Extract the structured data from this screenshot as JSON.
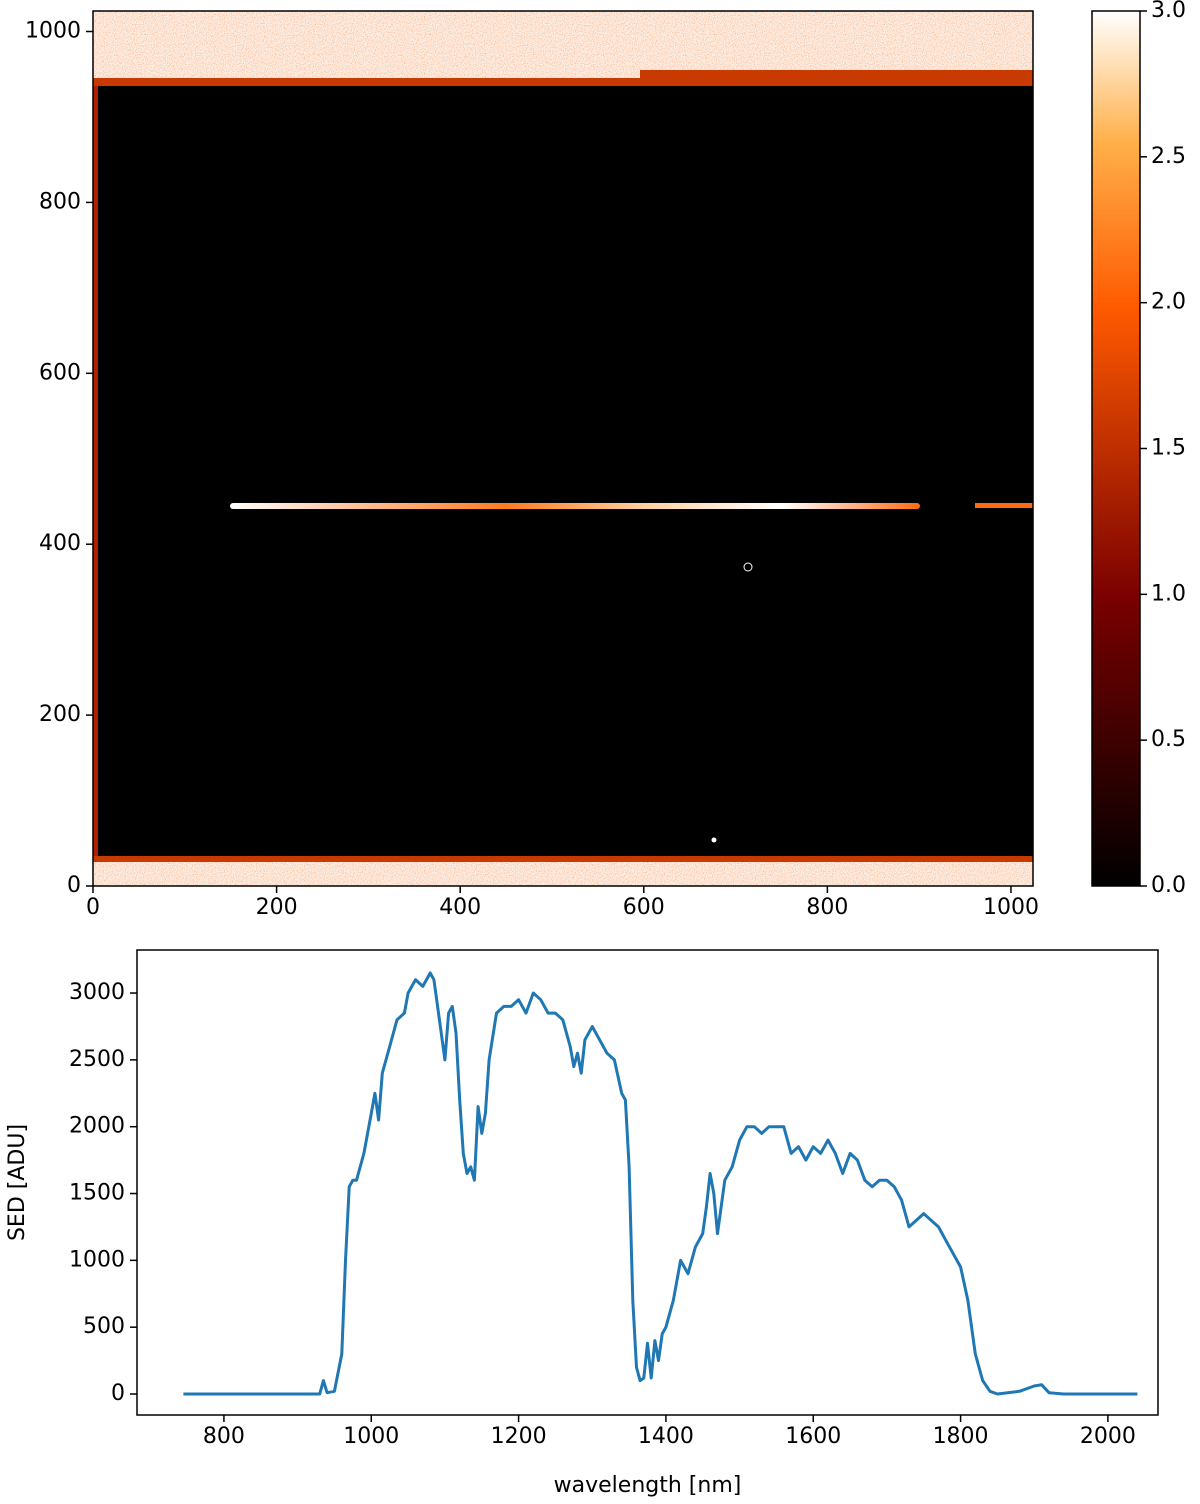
{
  "chart_data": [
    {
      "type": "image",
      "xlim": [
        0,
        1024
      ],
      "ylim": [
        0,
        1024
      ],
      "xticks": [
        0,
        200,
        400,
        600,
        800,
        1000
      ],
      "yticks": [
        0,
        200,
        400,
        600,
        800,
        1000
      ],
      "colorbar": {
        "lim": [
          0,
          3
        ],
        "ticks": [
          {
            "value": 0,
            "label": "0.0"
          },
          {
            "value": 0.5,
            "label": "0.5"
          },
          {
            "value": 1,
            "label": "1.0"
          },
          {
            "value": 1.5,
            "label": "1.5"
          },
          {
            "value": 2,
            "label": "2.0"
          },
          {
            "value": 2.5,
            "label": "2.5"
          },
          {
            "value": 3,
            "label": "3.0"
          }
        ]
      }
    },
    {
      "type": "line",
      "xlabel": "wavelength [nm]",
      "ylabel": "SED [ADU]",
      "xlim": [
        682,
        2068
      ],
      "ylim": [
        -157,
        3322
      ],
      "xticks": [
        800,
        1000,
        1200,
        1400,
        1600,
        1800,
        2000
      ],
      "yticks": [
        0,
        500,
        1000,
        1500,
        2000,
        2500,
        3000
      ],
      "x": [
        745,
        900,
        930,
        935,
        940,
        950,
        960,
        965,
        970,
        975,
        980,
        990,
        1000,
        1005,
        1010,
        1015,
        1025,
        1035,
        1045,
        1050,
        1060,
        1070,
        1080,
        1085,
        1090,
        1100,
        1105,
        1110,
        1115,
        1120,
        1125,
        1130,
        1135,
        1140,
        1145,
        1150,
        1155,
        1160,
        1170,
        1180,
        1190,
        1200,
        1210,
        1220,
        1230,
        1240,
        1250,
        1260,
        1270,
        1275,
        1280,
        1285,
        1290,
        1300,
        1310,
        1320,
        1330,
        1340,
        1345,
        1350,
        1355,
        1360,
        1365,
        1370,
        1375,
        1380,
        1385,
        1390,
        1395,
        1400,
        1410,
        1420,
        1430,
        1440,
        1450,
        1455,
        1460,
        1465,
        1470,
        1480,
        1490,
        1500,
        1510,
        1520,
        1530,
        1540,
        1550,
        1560,
        1570,
        1580,
        1590,
        1600,
        1610,
        1620,
        1630,
        1640,
        1650,
        1660,
        1670,
        1680,
        1690,
        1700,
        1710,
        1720,
        1730,
        1740,
        1750,
        1760,
        1770,
        1780,
        1790,
        1800,
        1810,
        1820,
        1830,
        1840,
        1850,
        1880,
        1900,
        1910,
        1920,
        1940,
        2040
      ],
      "series": [
        {
          "color": "#1f77b4",
          "values": [
            0,
            0,
            0,
            100,
            10,
            20,
            300,
            1000,
            1550,
            1600,
            1600,
            1800,
            2100,
            2250,
            2050,
            2400,
            2600,
            2800,
            2850,
            3000,
            3100,
            3050,
            3150,
            3100,
            2900,
            2500,
            2850,
            2900,
            2700,
            2200,
            1800,
            1650,
            1700,
            1600,
            2150,
            1950,
            2100,
            2500,
            2850,
            2900,
            2900,
            2950,
            2850,
            3000,
            2950,
            2850,
            2850,
            2800,
            2600,
            2450,
            2550,
            2400,
            2650,
            2750,
            2650,
            2550,
            2500,
            2250,
            2200,
            1700,
            700,
            200,
            100,
            120,
            380,
            120,
            400,
            250,
            450,
            500,
            700,
            1000,
            900,
            1100,
            1200,
            1400,
            1650,
            1500,
            1200,
            1600,
            1700,
            1900,
            2000,
            2000,
            1950,
            2000,
            2000,
            2000,
            1800,
            1850,
            1750,
            1850,
            1800,
            1900,
            1800,
            1650,
            1800,
            1750,
            1600,
            1550,
            1600,
            1600,
            1550,
            1450,
            1250,
            1300,
            1350,
            1300,
            1250,
            1150,
            1050,
            950,
            700,
            300,
            100,
            20,
            0,
            20,
            60,
            70,
            10,
            0,
            0
          ]
        }
      ]
    }
  ]
}
